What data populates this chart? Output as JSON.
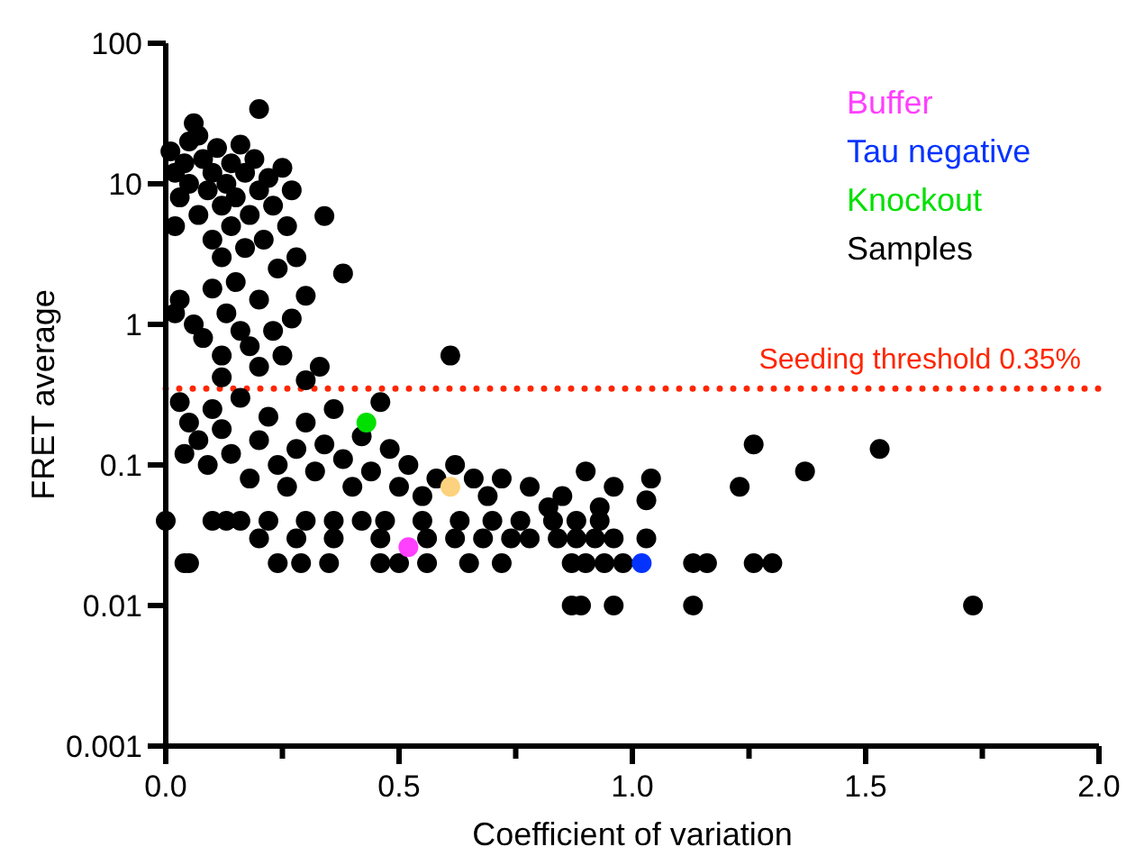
{
  "chart_data": {
    "type": "scatter",
    "xlabel": "Coefficient of variation",
    "ylabel": "FRET average",
    "log": "y",
    "grid": false,
    "legend": "top right",
    "marker": "circle",
    "xlim": [
      0,
      2
    ],
    "ylim": [
      0.001,
      100
    ],
    "xticks": [
      {
        "value": 0,
        "label": "0.0"
      },
      {
        "value": 0.25,
        "label": null
      },
      {
        "value": 0.5,
        "label": "0.5"
      },
      {
        "value": 0.75,
        "label": null
      },
      {
        "value": 1,
        "label": "1.0"
      },
      {
        "value": 1.25,
        "label": null
      },
      {
        "value": 1.5,
        "label": "1.5"
      },
      {
        "value": 1.75,
        "label": null
      },
      {
        "value": 2,
        "label": "2.0"
      }
    ],
    "yticks": [
      0.001,
      0.01,
      0.1,
      1,
      10,
      100
    ],
    "ref_lines": [
      {
        "axis": "y",
        "value": 0.35,
        "label": "Seeding threshold 0.35%",
        "color": "#ff2600",
        "line_style": "dotted"
      }
    ],
    "series": [
      {
        "color": "#fdd27e",
        "x": [
          0.61
        ],
        "values": [
          0.07
        ]
      },
      {
        "name": "Buffer",
        "color": "#ff40ff",
        "x": [
          0.52
        ],
        "values": [
          0.026
        ]
      },
      {
        "name": "Tau negative",
        "color": "#0433ff",
        "x": [
          1.02
        ],
        "values": [
          0.02
        ]
      },
      {
        "name": "Knockout",
        "color": "#00e000",
        "x": [
          0.43
        ],
        "values": [
          0.2
        ]
      },
      {
        "name": "Samples",
        "color": "#000000",
        "x": [
          0.01,
          0.02,
          0.03,
          0.02,
          0.04,
          0.05,
          0.05,
          0.06,
          0.07,
          0.07,
          0.08,
          0.09,
          0.1,
          0.1,
          0.11,
          0.12,
          0.12,
          0.13,
          0.14,
          0.14,
          0.15,
          0.15,
          0.16,
          0.17,
          0.17,
          0.18,
          0.19,
          0.2,
          0.2,
          0.21,
          0.22,
          0.23,
          0.24,
          0.25,
          0.26,
          0.27,
          0.28,
          0.03,
          0.02,
          0.06,
          0.08,
          0.1,
          0.12,
          0.13,
          0.16,
          0.18,
          0.2,
          0.23,
          0.25,
          0.27,
          0.3,
          0.3,
          0.33,
          0.2,
          0.34,
          0.38,
          0.61,
          0.03,
          0.04,
          0.0,
          0.12,
          0.05,
          0.07,
          0.09,
          0.1,
          0.12,
          0.14,
          0.16,
          0.18,
          0.2,
          0.22,
          0.24,
          0.26,
          0.28,
          0.3,
          0.32,
          0.34,
          0.36,
          0.38,
          0.4,
          0.42,
          0.44,
          0.46,
          0.48,
          0.5,
          0.52,
          0.55,
          0.58,
          0.62,
          0.66,
          0.69,
          0.72,
          0.78,
          0.82,
          0.85,
          0.9,
          0.93,
          0.96,
          0.1,
          0.13,
          0.16,
          0.22,
          0.3,
          0.36,
          0.42,
          0.47,
          0.55,
          0.63,
          0.7,
          0.76,
          0.83,
          0.88,
          0.93,
          0.2,
          0.28,
          0.36,
          0.46,
          0.56,
          0.62,
          0.68,
          0.74,
          0.78,
          0.84,
          0.88,
          0.92,
          0.96,
          1.03,
          0.04,
          0.05,
          0.24,
          0.29,
          0.35,
          0.46,
          0.5,
          0.56,
          0.65,
          0.72,
          0.87,
          0.9,
          0.94,
          0.98,
          1.13,
          1.16,
          1.26,
          1.3,
          0.87,
          0.89,
          0.96,
          1.13,
          1.73,
          1.26,
          1.53,
          1.37,
          1.23,
          1.04,
          1.03
        ],
        "values": [
          17,
          12,
          8,
          5,
          14,
          10,
          20,
          27,
          22,
          6,
          15,
          9,
          4,
          12,
          18,
          7,
          3,
          10,
          14,
          5,
          2,
          8,
          19,
          12,
          3.5,
          6,
          15,
          9,
          1.5,
          4,
          11,
          7,
          2.5,
          13,
          5,
          9,
          3,
          1.5,
          1.2,
          1,
          0.8,
          1.8,
          0.6,
          1.2,
          0.9,
          0.7,
          0.5,
          0.9,
          0.6,
          1.1,
          0.4,
          1.6,
          0.5,
          34,
          5.9,
          2.3,
          0.6,
          0.28,
          0.12,
          0.04,
          0.42,
          0.2,
          0.15,
          0.1,
          0.25,
          0.18,
          0.12,
          0.3,
          0.08,
          0.15,
          0.22,
          0.1,
          0.07,
          0.13,
          0.2,
          0.09,
          0.14,
          0.25,
          0.11,
          0.07,
          0.16,
          0.09,
          0.28,
          0.13,
          0.07,
          0.1,
          0.06,
          0.08,
          0.1,
          0.08,
          0.06,
          0.08,
          0.07,
          0.05,
          0.06,
          0.09,
          0.05,
          0.07,
          0.04,
          0.04,
          0.04,
          0.04,
          0.04,
          0.04,
          0.04,
          0.04,
          0.04,
          0.04,
          0.04,
          0.04,
          0.04,
          0.04,
          0.04,
          0.03,
          0.03,
          0.03,
          0.03,
          0.03,
          0.03,
          0.03,
          0.03,
          0.03,
          0.03,
          0.03,
          0.03,
          0.03,
          0.03,
          0.02,
          0.02,
          0.02,
          0.02,
          0.02,
          0.02,
          0.02,
          0.02,
          0.02,
          0.02,
          0.02,
          0.02,
          0.02,
          0.02,
          0.02,
          0.02,
          0.02,
          0.02,
          0.01,
          0.01,
          0.01,
          0.01,
          0.01,
          0.14,
          0.13,
          0.09,
          0.07,
          0.08,
          0.056
        ]
      }
    ]
  }
}
